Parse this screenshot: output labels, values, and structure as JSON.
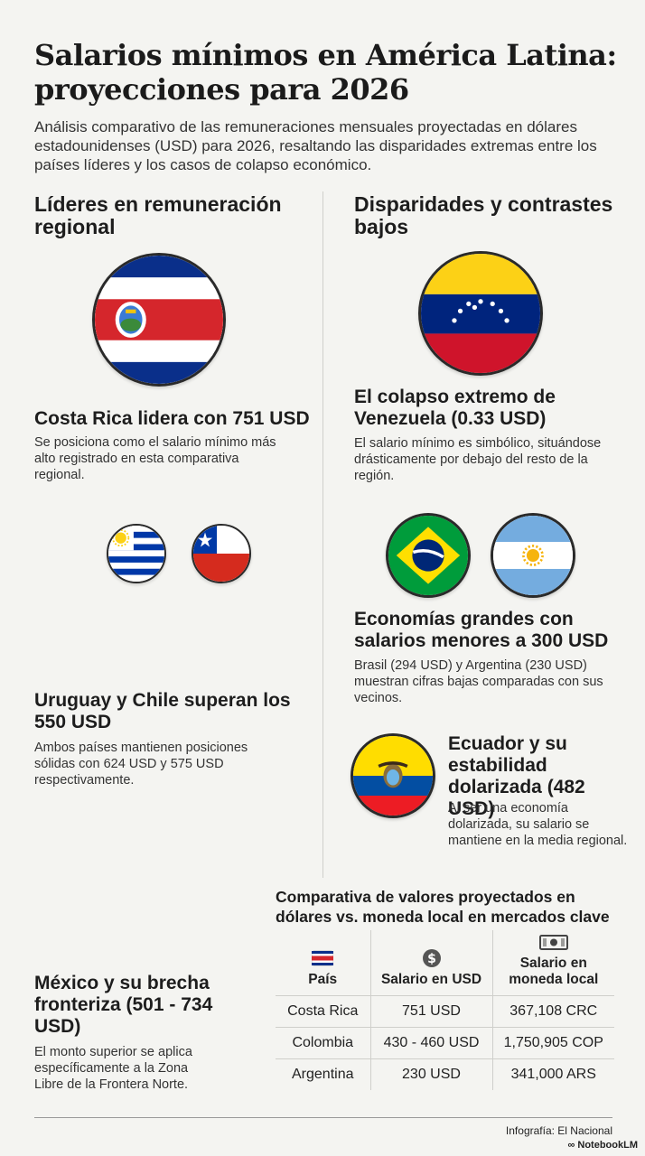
{
  "header": {
    "title_line1": "Salarios mínimos en América Latina:",
    "title_line2": "proyecciones para 2026",
    "subtitle": "Análisis comparativo de las remuneraciones mensuales proyectadas en dólares estadounidenses (USD) para 2026, resaltando las disparidades extremas entre los países líderes y los casos de colapso económico."
  },
  "left": {
    "heading": "Líderes en remuneración regional",
    "costa_rica": {
      "flag_icon": "costa-rica-flag-icon",
      "title": "Costa Rica lidera con 751 USD",
      "text": "Se posiciona como el salario mínimo más alto registrado en esta comparativa regional."
    },
    "uruguay_chile": {
      "flag_icons": [
        "uruguay-flag-icon",
        "chile-flag-icon"
      ],
      "title": "Uruguay y Chile superan los 550 USD",
      "text": "Ambos países mantienen posiciones sólidas con 624 USD y 575 USD respectivamente."
    },
    "mexico": {
      "title": "México y su brecha fronteriza (501 - 734 USD)",
      "text": "El monto superior se aplica específicamente a la Zona Libre de la Frontera Norte."
    }
  },
  "right": {
    "heading": "Disparidades y contrastes bajos",
    "venezuela": {
      "flag_icon": "venezuela-flag-icon",
      "title": "El colapso extremo de Venezuela (0.33 USD)",
      "text": "El salario mínimo es simbólico, situándose drásticamente por debajo del resto de la región."
    },
    "brasil_argentina": {
      "flag_icons": [
        "brazil-flag-icon",
        "argentina-flag-icon"
      ],
      "title": "Economías grandes con salarios menores a 300 USD",
      "text": "Brasil (294 USD) y Argentina (230 USD) muestran cifras bajas comparadas con sus vecinos."
    },
    "ecuador": {
      "flag_icon": "ecuador-flag-icon",
      "title": "Ecuador y su estabilidad dolarizada (482 USD)",
      "text": "Al ser una economía dolarizada, su salario se mantiene en la media regional."
    }
  },
  "table": {
    "title": "Comparativa de valores proyectados en dólares vs. moneda local en mercados clave",
    "headers": [
      "País",
      "Salario en USD",
      "Salario en moneda local"
    ],
    "rows": [
      [
        "Costa Rica",
        "751 USD",
        "367,108 CRC"
      ],
      [
        "Colombia",
        "430 - 460 USD",
        "1,750,905 COP"
      ],
      [
        "Argentina",
        "230 USD",
        "341,000 ARS"
      ]
    ]
  },
  "footer": {
    "credit": "Infografía: El Nacional",
    "brand": "NotebookLM"
  },
  "colors": {
    "background": "#f4f4f1",
    "text": "#1e1e1e",
    "divider": "#cfcfcb"
  }
}
